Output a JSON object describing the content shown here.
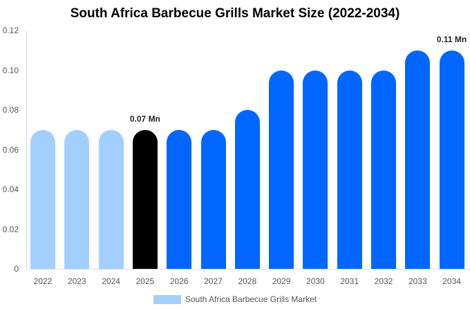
{
  "chart_data": {
    "type": "bar",
    "title": "South Africa Barbecue Grills Market Size (2022-2034)",
    "xlabel": "",
    "ylabel": "",
    "ylim": [
      0,
      0.12
    ],
    "yticks": [
      "0",
      "0.02",
      "0.04",
      "0.06",
      "0.08",
      "0.10",
      "0.12"
    ],
    "grid": false,
    "legend_position": "bottom",
    "categories": [
      "2022",
      "2023",
      "2024",
      "2025",
      "2026",
      "2027",
      "2028",
      "2029",
      "2030",
      "2031",
      "2032",
      "2033",
      "2034"
    ],
    "series": [
      {
        "name": "South Africa Barbecue Grills Market",
        "values": [
          0.07,
          0.07,
          0.07,
          0.07,
          0.07,
          0.07,
          0.08,
          0.1,
          0.1,
          0.1,
          0.1,
          0.11,
          0.11
        ],
        "colors": [
          "#a3cfff",
          "#a3cfff",
          "#a3cfff",
          "#000000",
          "#0066ff",
          "#0066ff",
          "#0066ff",
          "#0066ff",
          "#0066ff",
          "#0066ff",
          "#0066ff",
          "#0066ff",
          "#0066ff"
        ]
      }
    ],
    "annotations": [
      {
        "category": "2025",
        "text": "0.07 Mn"
      },
      {
        "category": "2034",
        "text": "0.11 Mn"
      }
    ]
  },
  "colors": {
    "historical": "#a3cfff",
    "current": "#000000",
    "forecast": "#0066ff",
    "legend": "#a3cfff"
  }
}
